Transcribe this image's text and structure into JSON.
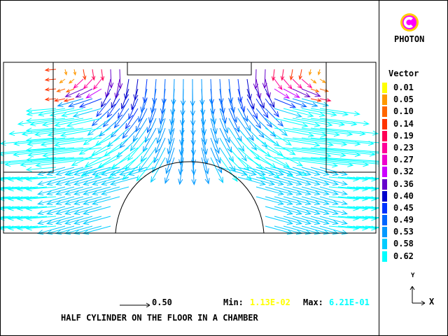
{
  "app": {
    "name": "PHOTON"
  },
  "legend": {
    "title": "Vector",
    "entries": [
      {
        "label": "0.01",
        "color": "#ffff00"
      },
      {
        "label": "0.05",
        "color": "#ff9900"
      },
      {
        "label": "0.10",
        "color": "#ff6600"
      },
      {
        "label": "0.14",
        "color": "#ff3300"
      },
      {
        "label": "0.19",
        "color": "#ff0055"
      },
      {
        "label": "0.23",
        "color": "#ff0099"
      },
      {
        "label": "0.27",
        "color": "#ee00cc"
      },
      {
        "label": "0.32",
        "color": "#cc00ff"
      },
      {
        "label": "0.36",
        "color": "#6600cc"
      },
      {
        "label": "0.40",
        "color": "#0000cc"
      },
      {
        "label": "0.45",
        "color": "#0033ff"
      },
      {
        "label": "0.49",
        "color": "#0066ff"
      },
      {
        "label": "0.53",
        "color": "#0099ff"
      },
      {
        "label": "0.58",
        "color": "#00ccff"
      },
      {
        "label": "0.62",
        "color": "#00ffff"
      }
    ]
  },
  "scale": {
    "value": "0.50"
  },
  "stats": {
    "min_label": "Min:",
    "min_value": "1.13E-02",
    "min_color": "#ffff00",
    "max_label": "Max:",
    "max_value": "6.21E-01",
    "max_color": "#00ffff"
  },
  "caption": "HALF CYLINDER ON THE FLOOR IN A CHAMBER",
  "axes": {
    "x": "X",
    "y": "Y"
  }
}
